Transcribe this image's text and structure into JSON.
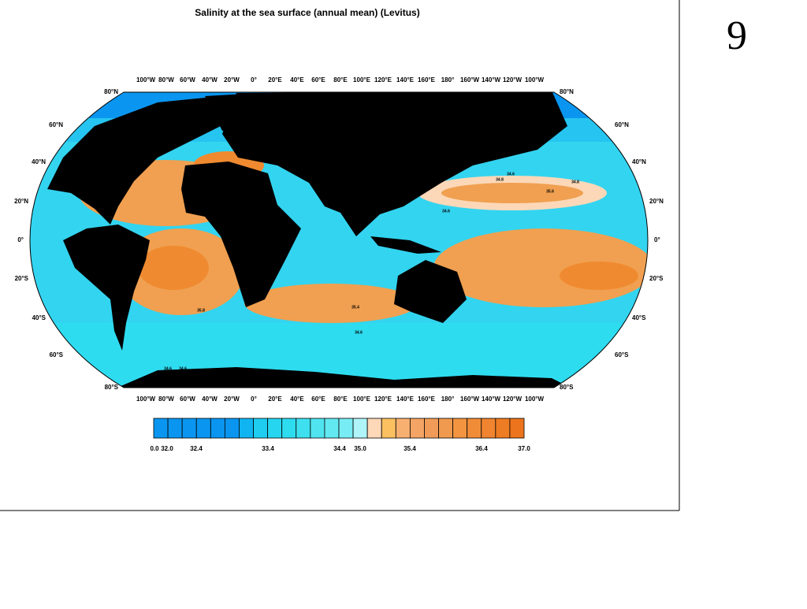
{
  "title": "Salinity at the sea surface (annual mean) (Levitus)",
  "slide_number": "9",
  "longitude_labels": [
    "100°W",
    "80°W",
    "60°W",
    "40°W",
    "20°W",
    "0°",
    "20°E",
    "40°E",
    "60°E",
    "80°E",
    "100°E",
    "120°E",
    "140°E",
    "160°E",
    "180°",
    "160°W",
    "140°W",
    "120°W",
    "100°W"
  ],
  "latitude_labels": [
    "80°N",
    "60°N",
    "40°N",
    "20°N",
    "0°",
    "20°S",
    "40°S",
    "60°S",
    "80°S"
  ],
  "contour_labels": [
    "34.6",
    "34.8",
    "35.6",
    "34.8",
    "34.6",
    "35.4",
    "35.8",
    "34.6",
    "34.6",
    "34.6"
  ],
  "colorbar": {
    "colors": [
      "#0a96f0",
      "#0a96f0",
      "#0a96f0",
      "#0a96f0",
      "#0a96f0",
      "#0a96f0",
      "#10b4f0",
      "#1ecdf0",
      "#26d6f0",
      "#2edcf0",
      "#3ee0f0",
      "#50e4f0",
      "#62e8f0",
      "#78ecf4",
      "#aef4f8",
      "#fcd8b8",
      "#fcc060",
      "#f8b070",
      "#f4a464",
      "#f09c58",
      "#f09a50",
      "#f29440",
      "#f08c38",
      "#f08430",
      "#ee7c24",
      "#ec741c"
    ],
    "labels": [
      "0.0",
      "32.0",
      "32.4",
      "33.4",
      "34.4",
      "35.0",
      "35.4",
      "36.4",
      "37.0"
    ]
  }
}
